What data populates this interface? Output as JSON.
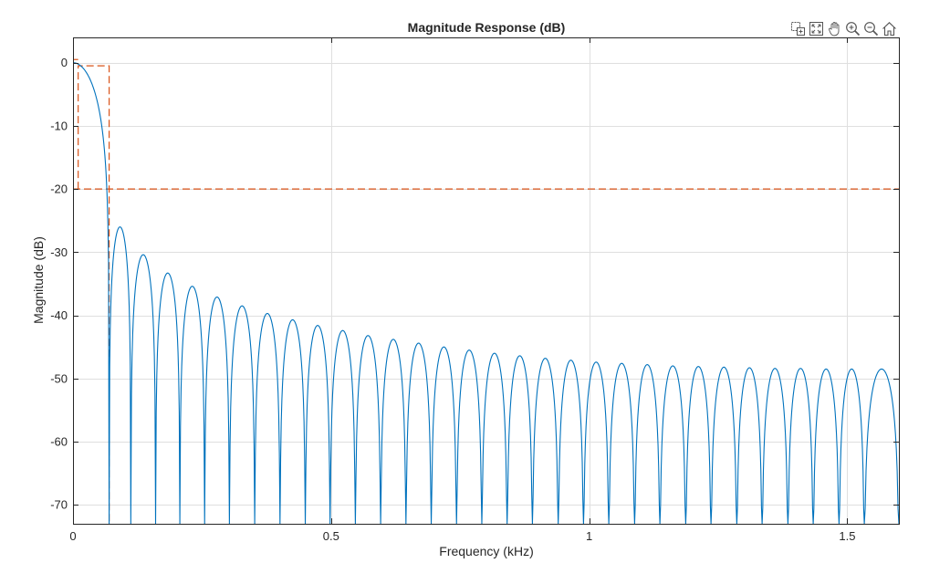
{
  "toolbar": {
    "buttons": [
      {
        "name": "brush-export-icon",
        "label": "Export"
      },
      {
        "name": "restore-view-icon",
        "label": "Restore View"
      },
      {
        "name": "pan-hand-icon",
        "label": "Pan"
      },
      {
        "name": "zoom-in-icon",
        "label": "Zoom In"
      },
      {
        "name": "zoom-out-icon",
        "label": "Zoom Out"
      },
      {
        "name": "home-icon",
        "label": "Home"
      }
    ]
  },
  "chart_data": {
    "type": "line",
    "title": "Magnitude Response (dB)",
    "xlabel": "Frequency (kHz)",
    "ylabel": "Magnitude (dB)",
    "xlim": [
      0,
      1.6
    ],
    "ylim": [
      -73,
      4
    ],
    "grid": true,
    "xticks": [
      0,
      0.5,
      1,
      1.5
    ],
    "xtick_labels": [
      "0",
      "0.5",
      "1",
      "1.5"
    ],
    "yticks": [
      0,
      -10,
      -20,
      -30,
      -40,
      -50,
      -60,
      -70
    ],
    "ytick_labels": [
      "0",
      "-10",
      "-20",
      "-30",
      "-40",
      "-50",
      "-60",
      "-70"
    ],
    "series": [
      {
        "kind": "magnitude",
        "color": "#0072bd",
        "main_lobe": {
          "peak_db": 0,
          "first_null_khz": 0.07
        },
        "sidelobe_nulls_khz": [
          0.07,
          0.112,
          0.16,
          0.207,
          0.255,
          0.303,
          0.352,
          0.401,
          0.45,
          0.498,
          0.547,
          0.596,
          0.645,
          0.694,
          0.743,
          0.792,
          0.841,
          0.89,
          0.94,
          0.989,
          1.038,
          1.088,
          1.137,
          1.187,
          1.236,
          1.286,
          1.335,
          1.385,
          1.434,
          1.484,
          1.533,
          1.6
        ],
        "sidelobe_peaks_db": [
          -26,
          -30.4,
          -33.3,
          -35.4,
          -37.1,
          -38.5,
          -39.7,
          -40.7,
          -41.6,
          -42.4,
          -43.2,
          -43.8,
          -44.4,
          -45,
          -45.5,
          -46,
          -46.4,
          -46.8,
          -47.1,
          -47.4,
          -47.6,
          -47.8,
          -48,
          -48.1,
          -48.2,
          -48.3,
          -48.4,
          -48.4,
          -48.5,
          -48.5,
          -48.5
        ]
      },
      {
        "kind": "mask",
        "color": "#d95319",
        "passband_edge_khz": 0.07,
        "passband_ripple_db": -0.5,
        "stopband_edge_khz": 0.01,
        "stopband_atten_db": -20
      }
    ]
  }
}
